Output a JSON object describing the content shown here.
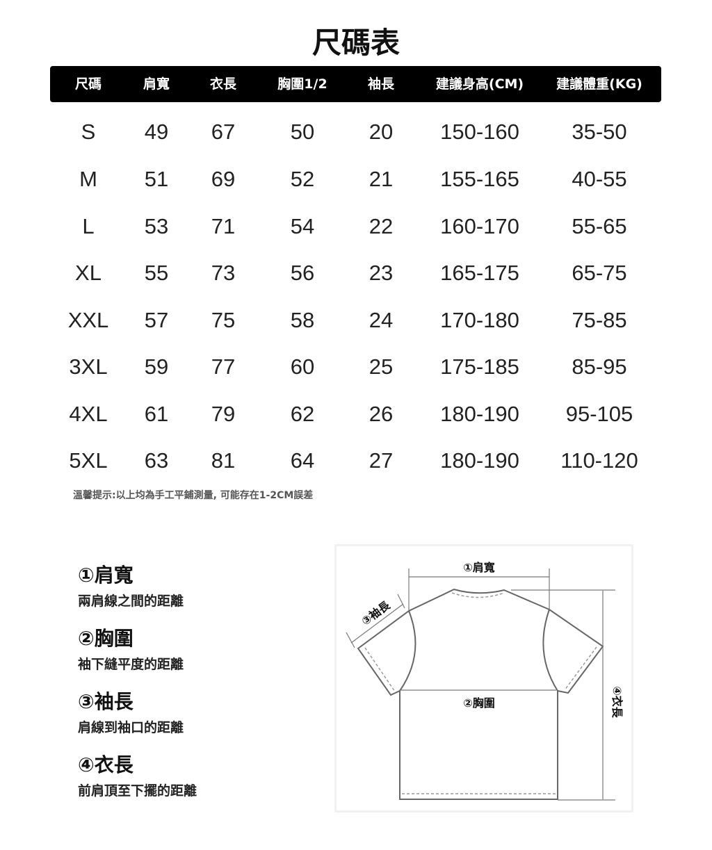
{
  "title": "尺碼表",
  "table": {
    "headers": [
      "尺碼",
      "肩寬",
      "衣長",
      "胸圍1/2",
      "袖長",
      "建議身高(CM)",
      "建議體重(KG)"
    ],
    "rows": [
      [
        "S",
        "49",
        "67",
        "50",
        "20",
        "150-160",
        "35-50"
      ],
      [
        "M",
        "51",
        "69",
        "52",
        "21",
        "155-165",
        "40-55"
      ],
      [
        "L",
        "53",
        "71",
        "54",
        "22",
        "160-170",
        "55-65"
      ],
      [
        "XL",
        "55",
        "73",
        "56",
        "23",
        "165-175",
        "65-75"
      ],
      [
        "XXL",
        "57",
        "75",
        "58",
        "24",
        "170-180",
        "75-85"
      ],
      [
        "3XL",
        "59",
        "77",
        "60",
        "25",
        "175-185",
        "85-95"
      ],
      [
        "4XL",
        "61",
        "79",
        "62",
        "26",
        "180-190",
        "95-105"
      ],
      [
        "5XL",
        "63",
        "81",
        "64",
        "27",
        "180-190",
        "110-120"
      ]
    ]
  },
  "note": "溫馨提示:以上均為手工平鋪測量, 可能存在1-2CM誤差",
  "definitions": [
    {
      "title": "①肩寬",
      "desc": "兩肩線之間的距離"
    },
    {
      "title": "②胸圍",
      "desc": "袖下縫平度的距離"
    },
    {
      "title": "③袖長",
      "desc": "肩線到袖口的距離"
    },
    {
      "title": "④衣長",
      "desc": "前肩頂至下擺的距離"
    }
  ],
  "diagram": {
    "shoulder_label": "①肩寬",
    "chest_label": "②胸圍",
    "sleeve_label": "③袖長",
    "length_label": "④衣長"
  }
}
